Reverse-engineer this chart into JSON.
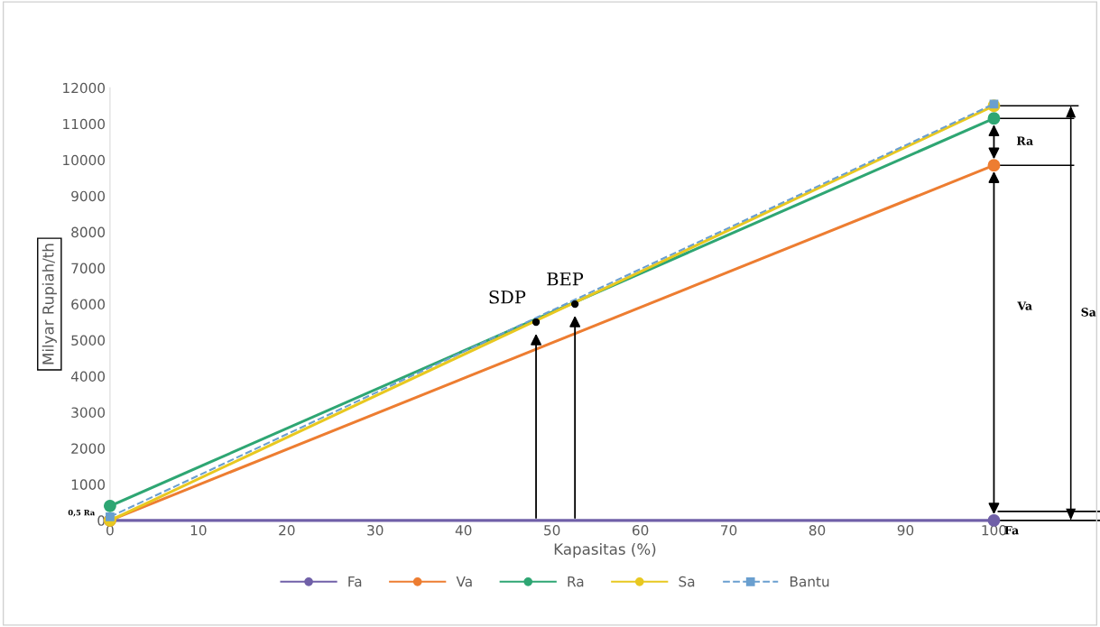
{
  "chart_data": {
    "type": "line",
    "xlabel": "Kapasitas (%)",
    "ylabel": "Milyar Rupiah/th",
    "x": [
      0,
      100
    ],
    "series": [
      {
        "name": "Fa",
        "color": "#7060a8",
        "values": [
          0,
          0
        ],
        "marker": "circle",
        "line_style": "solid"
      },
      {
        "name": "Va",
        "color": "#ed7d31",
        "values": [
          0,
          9850
        ],
        "marker": "circle",
        "line_style": "solid"
      },
      {
        "name": "Ra",
        "color": "#2ea673",
        "values": [
          400,
          11150
        ],
        "marker": "circle",
        "line_style": "solid"
      },
      {
        "name": "Sa",
        "color": "#e8c820",
        "values": [
          0,
          11500
        ],
        "marker": "circle",
        "line_style": "solid"
      },
      {
        "name": "Bantu",
        "color": "#6a9fcf",
        "values": [
          100,
          11550
        ],
        "marker": "square",
        "line_style": "dashed"
      }
    ],
    "xlim": [
      0,
      112
    ],
    "ylim": [
      0,
      12000
    ],
    "xticks": [
      0,
      10,
      20,
      30,
      40,
      50,
      60,
      70,
      80,
      90,
      100
    ],
    "yticks": [
      0,
      1000,
      2000,
      3000,
      4000,
      5000,
      6000,
      7000,
      8000,
      9000,
      10000,
      11000,
      12000
    ],
    "annotations": [
      {
        "text": "SDP",
        "x": 48.2,
        "y": 5500
      },
      {
        "text": "BEP",
        "x": 52.6,
        "y": 6000
      },
      {
        "text": "0,5 Ra",
        "x": 0,
        "y": 200
      },
      "Ra",
      "Va",
      "Sa",
      "Fa"
    ],
    "grid": false,
    "legend": "bottom"
  }
}
